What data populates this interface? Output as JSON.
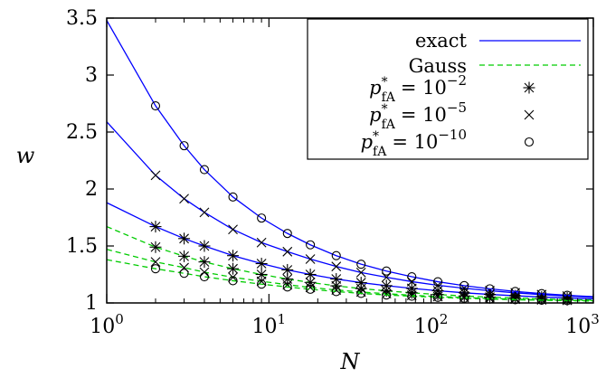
{
  "chart_data": {
    "type": "line",
    "xlabel": "N",
    "ylabel": "w",
    "xscale": "log",
    "xlim": [
      1,
      1000
    ],
    "ylim": [
      1,
      3.5
    ],
    "xticks": [
      {
        "value": 1,
        "base": "10",
        "exp": "0"
      },
      {
        "value": 10,
        "base": "10",
        "exp": "1"
      },
      {
        "value": 100,
        "base": "10",
        "exp": "2"
      },
      {
        "value": 1000,
        "base": "10",
        "exp": "3"
      }
    ],
    "yticks": [
      "1",
      "1.5",
      "2",
      "2.5",
      "3",
      "3.5"
    ],
    "grid": false,
    "legend_position": "top-right",
    "legend": {
      "exact_label": "exact",
      "gauss_label": "Gauss",
      "pfa_symbol": "p",
      "pfa_sup": "*",
      "pfa_sub": "fA",
      "entries": [
        {
          "marker": "asterisk",
          "eq": "= 10",
          "exp": "−2"
        },
        {
          "marker": "cross",
          "eq": "= 10",
          "exp": "−5"
        },
        {
          "marker": "circle",
          "eq": "= 10",
          "exp": "−10"
        }
      ]
    },
    "colors": {
      "exact": "#0000ff",
      "gauss": "#00cc00",
      "marker": "#000000"
    },
    "x": [
      1,
      2,
      3,
      4,
      6,
      9,
      13,
      18,
      26,
      37,
      53,
      76,
      110,
      160,
      230,
      330,
      480,
      690,
      1000
    ],
    "series": [
      {
        "method": "exact",
        "marker": "asterisk",
        "values": [
          1.88,
          1.67,
          1.565,
          1.5,
          1.415,
          1.345,
          1.29,
          1.25,
          1.21,
          1.178,
          1.152,
          1.128,
          1.107,
          1.089,
          1.075,
          1.063,
          1.052,
          1.043,
          1.036
        ]
      },
      {
        "method": "exact",
        "marker": "cross",
        "values": [
          2.59,
          2.12,
          1.915,
          1.795,
          1.645,
          1.53,
          1.45,
          1.385,
          1.32,
          1.267,
          1.225,
          1.187,
          1.155,
          1.129,
          1.107,
          1.089,
          1.073,
          1.06,
          1.05
        ]
      },
      {
        "method": "exact",
        "marker": "circle",
        "values": [
          3.48,
          2.73,
          2.38,
          2.17,
          1.93,
          1.745,
          1.61,
          1.51,
          1.415,
          1.34,
          1.28,
          1.23,
          1.186,
          1.152,
          1.124,
          1.101,
          1.082,
          1.067,
          1.055
        ]
      },
      {
        "method": "gauss",
        "marker": "asterisk",
        "values": [
          1.67,
          1.49,
          1.41,
          1.36,
          1.3,
          1.25,
          1.21,
          1.18,
          1.15,
          1.126,
          1.106,
          1.089,
          1.074,
          1.061,
          1.051,
          1.043,
          1.035,
          1.029,
          1.025
        ]
      },
      {
        "method": "gauss",
        "marker": "cross",
        "values": [
          1.47,
          1.36,
          1.31,
          1.27,
          1.225,
          1.19,
          1.16,
          1.136,
          1.114,
          1.096,
          1.081,
          1.067,
          1.056,
          1.047,
          1.039,
          1.033,
          1.027,
          1.023,
          1.019
        ]
      },
      {
        "method": "gauss",
        "marker": "circle",
        "values": [
          1.38,
          1.3,
          1.26,
          1.23,
          1.195,
          1.165,
          1.14,
          1.12,
          1.1,
          1.084,
          1.07,
          1.059,
          1.049,
          1.041,
          1.034,
          1.028,
          1.024,
          1.02,
          1.017
        ]
      }
    ]
  }
}
